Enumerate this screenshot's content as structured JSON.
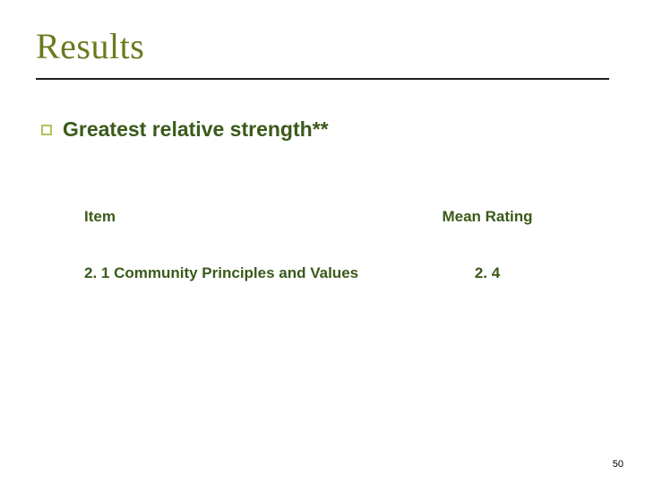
{
  "colors": {
    "title": "#6b7a1f",
    "underline": "#1f1f1f",
    "bullet_border": "#b7bf5e",
    "bullet_text": "#3a5a1a",
    "header_text": "#3a5a1a",
    "body_text": "#3a5a1a",
    "page_num": "#000000",
    "background": "#ffffff"
  },
  "title": "Results",
  "bullet": {
    "text": "Greatest relative strength**"
  },
  "table": {
    "headers": {
      "item": "Item",
      "mean": "Mean Rating"
    },
    "row": {
      "item": "2. 1 Community Principles and Values",
      "mean": "2. 4"
    }
  },
  "page_number": "50",
  "typography": {
    "title_fontsize": 40,
    "bullet_fontsize": 23,
    "table_fontsize": 17,
    "pagenum_fontsize": 11
  }
}
